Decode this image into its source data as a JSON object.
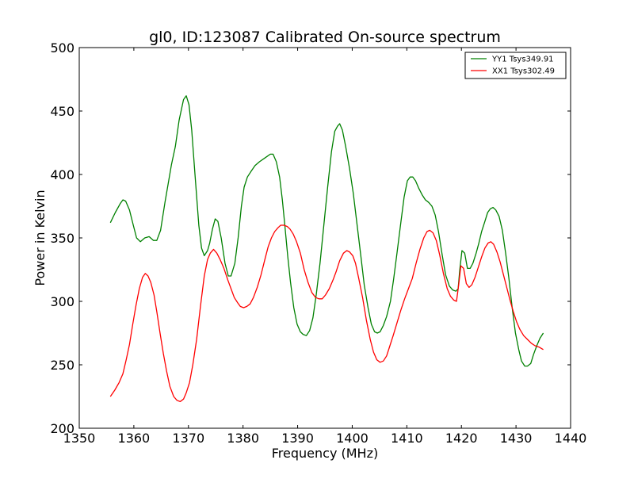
{
  "chart_data": {
    "type": "line",
    "title": "gl0, ID:123087 Calibrated On-source spectrum",
    "xlabel": "Frequency (MHz)",
    "ylabel": "Power in Kelvin",
    "xlim": [
      1350,
      1440
    ],
    "ylim": [
      200,
      500
    ],
    "xticks": [
      1350,
      1360,
      1370,
      1380,
      1390,
      1400,
      1410,
      1420,
      1430,
      1440
    ],
    "yticks": [
      200,
      250,
      300,
      350,
      400,
      450,
      500
    ],
    "grid": false,
    "legend_position": "top-right",
    "series": [
      {
        "name": "YY1 Tsys349.91",
        "color": "#008000",
        "points": [
          [
            1355.7,
            362
          ],
          [
            1356.6,
            370
          ],
          [
            1357.5,
            377
          ],
          [
            1358.0,
            380
          ],
          [
            1358.5,
            379
          ],
          [
            1359.2,
            372
          ],
          [
            1359.9,
            360
          ],
          [
            1360.5,
            350
          ],
          [
            1361.2,
            347
          ],
          [
            1362.0,
            350
          ],
          [
            1362.8,
            351
          ],
          [
            1363.6,
            348
          ],
          [
            1364.2,
            348
          ],
          [
            1364.9,
            356
          ],
          [
            1365.7,
            378
          ],
          [
            1366.3,
            393
          ],
          [
            1366.9,
            408
          ],
          [
            1367.6,
            422
          ],
          [
            1368.3,
            443
          ],
          [
            1369.1,
            459
          ],
          [
            1369.6,
            462
          ],
          [
            1370.1,
            455
          ],
          [
            1370.6,
            435
          ],
          [
            1371.2,
            400
          ],
          [
            1371.9,
            360
          ],
          [
            1372.4,
            342
          ],
          [
            1372.9,
            336
          ],
          [
            1373.5,
            340
          ],
          [
            1373.9,
            346
          ],
          [
            1374.4,
            357
          ],
          [
            1374.9,
            365
          ],
          [
            1375.4,
            363
          ],
          [
            1376.0,
            350
          ],
          [
            1376.7,
            330
          ],
          [
            1377.3,
            320
          ],
          [
            1377.8,
            320
          ],
          [
            1378.5,
            330
          ],
          [
            1379.1,
            350
          ],
          [
            1379.7,
            375
          ],
          [
            1380.2,
            390
          ],
          [
            1380.8,
            398
          ],
          [
            1381.4,
            402
          ],
          [
            1382.2,
            407
          ],
          [
            1383.0,
            410
          ],
          [
            1384.0,
            413
          ],
          [
            1385.0,
            416
          ],
          [
            1385.5,
            416
          ],
          [
            1386.1,
            410
          ],
          [
            1386.7,
            398
          ],
          [
            1387.2,
            380
          ],
          [
            1387.7,
            358
          ],
          [
            1388.2,
            335
          ],
          [
            1388.7,
            315
          ],
          [
            1389.3,
            295
          ],
          [
            1389.9,
            282
          ],
          [
            1390.5,
            276
          ],
          [
            1391.0,
            274
          ],
          [
            1391.6,
            273
          ],
          [
            1392.2,
            277
          ],
          [
            1392.8,
            287
          ],
          [
            1393.4,
            305
          ],
          [
            1394.1,
            330
          ],
          [
            1394.8,
            360
          ],
          [
            1395.5,
            390
          ],
          [
            1396.2,
            418
          ],
          [
            1396.8,
            434
          ],
          [
            1397.3,
            438
          ],
          [
            1397.7,
            440
          ],
          [
            1398.2,
            435
          ],
          [
            1398.8,
            422
          ],
          [
            1399.5,
            405
          ],
          [
            1400.2,
            385
          ],
          [
            1400.9,
            360
          ],
          [
            1401.6,
            335
          ],
          [
            1402.2,
            313
          ],
          [
            1402.9,
            295
          ],
          [
            1403.5,
            282
          ],
          [
            1404.1,
            276
          ],
          [
            1404.6,
            275
          ],
          [
            1405.1,
            276
          ],
          [
            1405.7,
            281
          ],
          [
            1406.3,
            288
          ],
          [
            1407.0,
            300
          ],
          [
            1407.6,
            318
          ],
          [
            1408.2,
            338
          ],
          [
            1408.9,
            362
          ],
          [
            1409.5,
            382
          ],
          [
            1410.1,
            395
          ],
          [
            1410.6,
            398
          ],
          [
            1411.1,
            398
          ],
          [
            1411.6,
            395
          ],
          [
            1412.2,
            389
          ],
          [
            1412.8,
            384
          ],
          [
            1413.4,
            380
          ],
          [
            1414.0,
            378
          ],
          [
            1414.6,
            375
          ],
          [
            1415.2,
            368
          ],
          [
            1415.8,
            355
          ],
          [
            1416.5,
            336
          ],
          [
            1417.1,
            321
          ],
          [
            1417.8,
            312
          ],
          [
            1418.4,
            309
          ],
          [
            1419.0,
            308
          ],
          [
            1419.4,
            310
          ],
          [
            1419.7,
            325
          ],
          [
            1420.1,
            340
          ],
          [
            1420.6,
            338
          ],
          [
            1421.1,
            326
          ],
          [
            1421.6,
            326
          ],
          [
            1422.1,
            330
          ],
          [
            1422.7,
            338
          ],
          [
            1423.2,
            346
          ],
          [
            1423.7,
            355
          ],
          [
            1424.3,
            363
          ],
          [
            1424.8,
            370
          ],
          [
            1425.3,
            373
          ],
          [
            1425.8,
            374
          ],
          [
            1426.3,
            372
          ],
          [
            1426.9,
            367
          ],
          [
            1427.5,
            356
          ],
          [
            1428.1,
            338
          ],
          [
            1428.7,
            318
          ],
          [
            1429.3,
            295
          ],
          [
            1429.9,
            275
          ],
          [
            1430.5,
            262
          ],
          [
            1431.0,
            253
          ],
          [
            1431.6,
            249
          ],
          [
            1432.1,
            249
          ],
          [
            1432.7,
            251
          ],
          [
            1433.2,
            258
          ],
          [
            1433.8,
            265
          ],
          [
            1434.4,
            271
          ],
          [
            1435.0,
            275
          ]
        ]
      },
      {
        "name": "XX1 Tsys302.49",
        "color": "#ff0000",
        "points": [
          [
            1355.7,
            225
          ],
          [
            1356.5,
            230
          ],
          [
            1357.3,
            236
          ],
          [
            1358.0,
            243
          ],
          [
            1358.6,
            254
          ],
          [
            1359.2,
            266
          ],
          [
            1359.8,
            282
          ],
          [
            1360.4,
            297
          ],
          [
            1361.0,
            310
          ],
          [
            1361.6,
            319
          ],
          [
            1362.1,
            322
          ],
          [
            1362.6,
            320
          ],
          [
            1363.1,
            315
          ],
          [
            1363.7,
            305
          ],
          [
            1364.2,
            292
          ],
          [
            1364.8,
            275
          ],
          [
            1365.4,
            259
          ],
          [
            1366.0,
            245
          ],
          [
            1366.6,
            233
          ],
          [
            1367.3,
            225
          ],
          [
            1367.9,
            222
          ],
          [
            1368.5,
            221
          ],
          [
            1369.1,
            223
          ],
          [
            1369.6,
            228
          ],
          [
            1370.2,
            236
          ],
          [
            1370.8,
            250
          ],
          [
            1371.5,
            270
          ],
          [
            1372.2,
            296
          ],
          [
            1372.9,
            320
          ],
          [
            1373.5,
            333
          ],
          [
            1374.0,
            338
          ],
          [
            1374.6,
            341
          ],
          [
            1375.2,
            338
          ],
          [
            1375.8,
            333
          ],
          [
            1376.5,
            326
          ],
          [
            1377.2,
            317
          ],
          [
            1377.8,
            310
          ],
          [
            1378.4,
            303
          ],
          [
            1379.0,
            299
          ],
          [
            1379.5,
            296
          ],
          [
            1380.1,
            295
          ],
          [
            1380.7,
            296
          ],
          [
            1381.3,
            298
          ],
          [
            1381.9,
            303
          ],
          [
            1382.6,
            311
          ],
          [
            1383.3,
            321
          ],
          [
            1384.0,
            333
          ],
          [
            1384.6,
            343
          ],
          [
            1385.2,
            350
          ],
          [
            1385.8,
            355
          ],
          [
            1386.4,
            358
          ],
          [
            1386.9,
            360
          ],
          [
            1387.5,
            360
          ],
          [
            1388.1,
            359
          ],
          [
            1388.6,
            357
          ],
          [
            1389.2,
            353
          ],
          [
            1389.8,
            347
          ],
          [
            1390.5,
            338
          ],
          [
            1391.2,
            325
          ],
          [
            1391.9,
            315
          ],
          [
            1392.6,
            307
          ],
          [
            1393.3,
            303
          ],
          [
            1393.9,
            302
          ],
          [
            1394.5,
            302
          ],
          [
            1395.1,
            305
          ],
          [
            1395.8,
            310
          ],
          [
            1396.5,
            317
          ],
          [
            1397.1,
            324
          ],
          [
            1397.7,
            332
          ],
          [
            1398.4,
            338
          ],
          [
            1399.0,
            340
          ],
          [
            1399.5,
            339
          ],
          [
            1400.1,
            336
          ],
          [
            1400.6,
            330
          ],
          [
            1401.2,
            318
          ],
          [
            1401.9,
            303
          ],
          [
            1402.6,
            285
          ],
          [
            1403.3,
            270
          ],
          [
            1403.9,
            260
          ],
          [
            1404.5,
            254
          ],
          [
            1405.1,
            252
          ],
          [
            1405.7,
            253
          ],
          [
            1406.3,
            257
          ],
          [
            1406.9,
            265
          ],
          [
            1407.5,
            273
          ],
          [
            1408.2,
            283
          ],
          [
            1408.9,
            293
          ],
          [
            1409.6,
            302
          ],
          [
            1410.3,
            310
          ],
          [
            1411.0,
            318
          ],
          [
            1411.7,
            330
          ],
          [
            1412.4,
            341
          ],
          [
            1413.1,
            350
          ],
          [
            1413.7,
            355
          ],
          [
            1414.2,
            356
          ],
          [
            1414.8,
            354
          ],
          [
            1415.4,
            348
          ],
          [
            1416.0,
            337
          ],
          [
            1416.7,
            322
          ],
          [
            1417.4,
            310
          ],
          [
            1418.0,
            304
          ],
          [
            1418.6,
            301
          ],
          [
            1419.1,
            300
          ],
          [
            1419.5,
            313
          ],
          [
            1419.9,
            328
          ],
          [
            1420.4,
            326
          ],
          [
            1420.9,
            314
          ],
          [
            1421.4,
            311
          ],
          [
            1421.9,
            313
          ],
          [
            1422.5,
            319
          ],
          [
            1423.1,
            327
          ],
          [
            1423.7,
            335
          ],
          [
            1424.3,
            342
          ],
          [
            1424.9,
            346
          ],
          [
            1425.4,
            347
          ],
          [
            1425.9,
            345
          ],
          [
            1426.5,
            339
          ],
          [
            1427.1,
            331
          ],
          [
            1427.7,
            321
          ],
          [
            1428.3,
            311
          ],
          [
            1428.9,
            301
          ],
          [
            1429.5,
            292
          ],
          [
            1430.1,
            284
          ],
          [
            1430.7,
            278
          ],
          [
            1431.4,
            273
          ],
          [
            1432.1,
            270
          ],
          [
            1432.8,
            267
          ],
          [
            1433.5,
            265
          ],
          [
            1434.2,
            264
          ],
          [
            1435.0,
            262
          ]
        ]
      }
    ]
  }
}
